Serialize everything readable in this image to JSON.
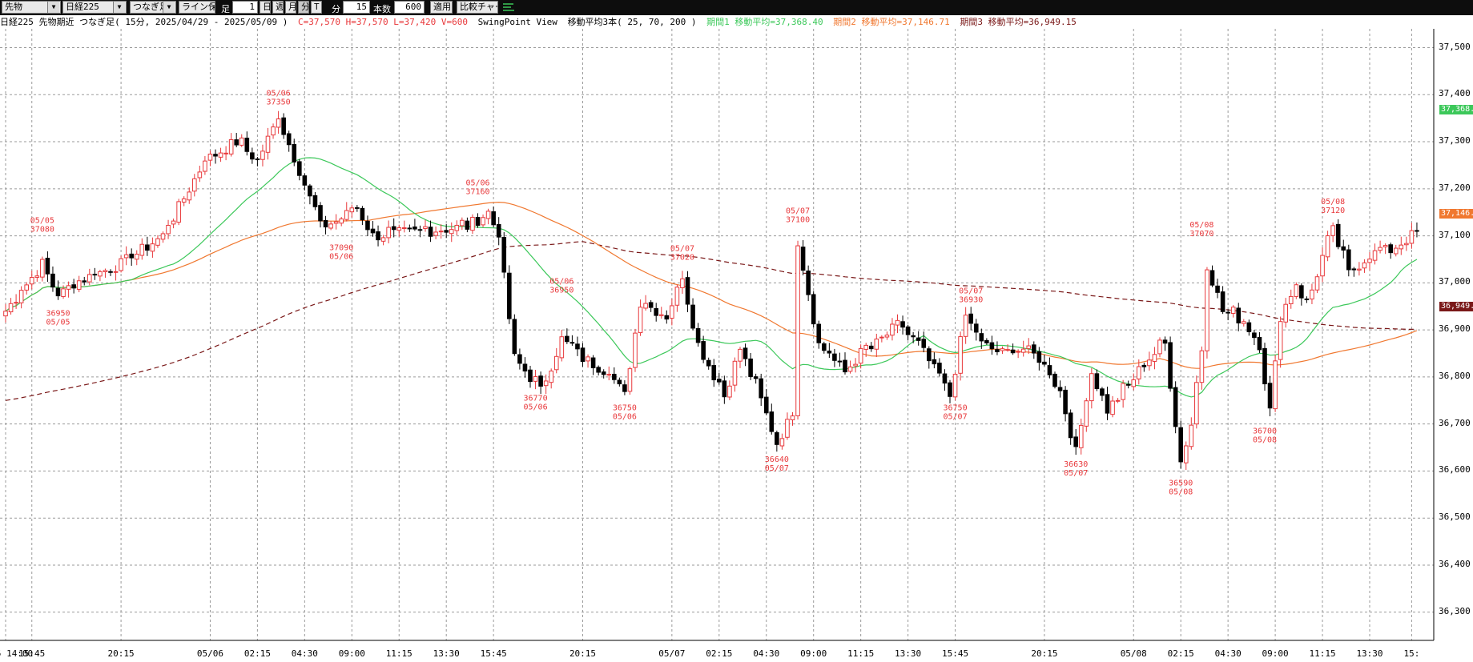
{
  "toolbar": {
    "contract_type": "先物",
    "index": "日経225",
    "continuity": "つなぎ足",
    "save_lines": "ライン保存",
    "foot_label": "足",
    "interval_value": "1",
    "daily": "日",
    "weekly": "週",
    "monthly": "月",
    "minute": "分",
    "tick": "T",
    "minutes_value": "15",
    "bars_label": "本数",
    "bars_value": "600",
    "apply": "適用",
    "compare": "比較チャート"
  },
  "info": {
    "title": "日経225 先物期近 つなぎ足( 15分, 2025/04/29 - 2025/05/09 )",
    "ohlc": "C=37,570 H=37,570 L=37,420 V=600",
    "swing": "SwingPoint View",
    "ma_title": "移動平均3本( 25, 70, 200 )",
    "ma1": "期間1 移動平均=37,368.40",
    "ma2": "期間2 移動平均=37,146.71",
    "ma3": "期間3 移動平均=36,949.15"
  },
  "colors": {
    "up": "#e8383b",
    "down": "#000000",
    "ma1": "#3cc85a",
    "ma2": "#f07830",
    "ma3": "#7a1818",
    "swing": "#e8383b",
    "grid": "#9a9a9a"
  },
  "markers": [
    {
      "text": "37,368.4",
      "value": 37368.4,
      "color": "#3cc85a"
    },
    {
      "text": "37,146.7",
      "value": 37146.7,
      "color": "#f07830"
    },
    {
      "text": "36,949.1",
      "value": 36949.15,
      "color": "#7a1818"
    }
  ],
  "chart_data": {
    "type": "candlestick",
    "title": "日経225 先物期近 つなぎ足( 15分, 2025/04/29 - 2025/05/09 )",
    "xlabel": "",
    "ylabel": "",
    "ylim": [
      36240,
      37540
    ],
    "yticks": [
      37500,
      37400,
      37300,
      37200,
      37100,
      37000,
      36900,
      36800,
      36700,
      36600,
      36500,
      36400,
      36300
    ],
    "ytick_labels": [
      "37,500",
      "37,400",
      "37,300",
      "37,200",
      "37,100",
      "37,000",
      "36,900",
      "36,800",
      "36,700",
      "36,600",
      "36,500",
      "36,400",
      "36,300"
    ],
    "xticks": [
      {
        "bar": 0,
        "label": "5 14:00"
      },
      {
        "bar": 5,
        "label": "15:45"
      },
      {
        "bar": 22,
        "label": "20:15"
      },
      {
        "bar": 39,
        "label": "05/06"
      },
      {
        "bar": 48,
        "label": "02:15"
      },
      {
        "bar": 57,
        "label": "04:30"
      },
      {
        "bar": 66,
        "label": "09:00"
      },
      {
        "bar": 75,
        "label": "11:15"
      },
      {
        "bar": 84,
        "label": "13:30"
      },
      {
        "bar": 93,
        "label": "15:45"
      },
      {
        "bar": 110,
        "label": "20:15"
      },
      {
        "bar": 127,
        "label": "05/07"
      },
      {
        "bar": 136,
        "label": "02:15"
      },
      {
        "bar": 145,
        "label": "04:30"
      },
      {
        "bar": 154,
        "label": "09:00"
      },
      {
        "bar": 163,
        "label": "11:15"
      },
      {
        "bar": 172,
        "label": "13:30"
      },
      {
        "bar": 181,
        "label": "15:45"
      },
      {
        "bar": 198,
        "label": "20:15"
      },
      {
        "bar": 215,
        "label": "05/08"
      },
      {
        "bar": 224,
        "label": "02:15"
      },
      {
        "bar": 233,
        "label": "04:30"
      },
      {
        "bar": 242,
        "label": "09:00"
      },
      {
        "bar": 251,
        "label": "11:15"
      },
      {
        "bar": 260,
        "label": "13:30"
      },
      {
        "bar": 268,
        "label": "15:"
      }
    ],
    "series": [
      {
        "name": "ローソク足",
        "type": "candle"
      },
      {
        "name": "移動平均 25",
        "type": "line",
        "color": "#3cc85a"
      },
      {
        "name": "移動平均 70",
        "type": "line",
        "color": "#f07830"
      },
      {
        "name": "移動平均 200",
        "type": "dashed-line",
        "color": "#7a1818"
      }
    ],
    "anchors": [
      [
        0,
        36940
      ],
      [
        7,
        37040
      ],
      [
        10,
        36970
      ],
      [
        13,
        37000
      ],
      [
        22,
        37040
      ],
      [
        30,
        37100
      ],
      [
        38,
        37260
      ],
      [
        44,
        37300
      ],
      [
        48,
        37260
      ],
      [
        52,
        37350
      ],
      [
        56,
        37240
      ],
      [
        60,
        37120
      ],
      [
        63,
        37130
      ],
      [
        67,
        37160
      ],
      [
        70,
        37100
      ],
      [
        80,
        37110
      ],
      [
        88,
        37120
      ],
      [
        92,
        37150
      ],
      [
        94,
        37100
      ],
      [
        95,
        37010
      ],
      [
        97,
        36840
      ],
      [
        100,
        36800
      ],
      [
        102,
        36770
      ],
      [
        106,
        36880
      ],
      [
        110,
        36840
      ],
      [
        115,
        36810
      ],
      [
        118,
        36760
      ],
      [
        121,
        36960
      ],
      [
        126,
        36930
      ],
      [
        129,
        37010
      ],
      [
        132,
        36870
      ],
      [
        137,
        36760
      ],
      [
        140,
        36860
      ],
      [
        144,
        36750
      ],
      [
        147,
        36660
      ],
      [
        150,
        36720
      ],
      [
        151,
        37090
      ],
      [
        155,
        36870
      ],
      [
        160,
        36810
      ],
      [
        163,
        36850
      ],
      [
        165,
        36860
      ],
      [
        170,
        36910
      ],
      [
        174,
        36870
      ],
      [
        180,
        36760
      ],
      [
        183,
        36930
      ],
      [
        186,
        36870
      ],
      [
        190,
        36850
      ],
      [
        194,
        36860
      ],
      [
        197,
        36840
      ],
      [
        201,
        36770
      ],
      [
        204,
        36640
      ],
      [
        207,
        36810
      ],
      [
        210,
        36730
      ],
      [
        214,
        36780
      ],
      [
        217,
        36830
      ],
      [
        221,
        36870
      ],
      [
        224,
        36620
      ],
      [
        226,
        36700
      ],
      [
        228,
        36860
      ],
      [
        229,
        37040
      ],
      [
        232,
        36940
      ],
      [
        236,
        36920
      ],
      [
        239,
        36870
      ],
      [
        241,
        36720
      ],
      [
        243,
        36930
      ],
      [
        246,
        37000
      ],
      [
        248,
        36950
      ],
      [
        252,
        37090
      ],
      [
        253,
        37110
      ],
      [
        256,
        37020
      ],
      [
        260,
        37060
      ],
      [
        264,
        37070
      ],
      [
        268,
        37100
      ]
    ],
    "swing_points": [
      {
        "bar": 7,
        "value": 37080,
        "date": "05/05",
        "pos": "high"
      },
      {
        "bar": 10,
        "value": 36950,
        "date": "05/05",
        "pos": "low"
      },
      {
        "bar": 52,
        "value": 37350,
        "date": "05/06",
        "pos": "high"
      },
      {
        "bar": 64,
        "value": 37090,
        "date": "05/06",
        "pos": "low"
      },
      {
        "bar": 90,
        "value": 37160,
        "date": "05/06",
        "pos": "high"
      },
      {
        "bar": 101,
        "value": 36770,
        "date": "05/06",
        "pos": "low"
      },
      {
        "bar": 106,
        "value": 36950,
        "date": "05/06",
        "pos": "high"
      },
      {
        "bar": 118,
        "value": 36750,
        "date": "05/06",
        "pos": "low"
      },
      {
        "bar": 129,
        "value": 37020,
        "date": "05/07",
        "pos": "high"
      },
      {
        "bar": 147,
        "value": 36640,
        "date": "05/07",
        "pos": "low"
      },
      {
        "bar": 151,
        "value": 37100,
        "date": "05/07",
        "pos": "high"
      },
      {
        "bar": 181,
        "value": 36750,
        "date": "05/07",
        "pos": "low"
      },
      {
        "bar": 184,
        "value": 36930,
        "date": "05/07",
        "pos": "high"
      },
      {
        "bar": 204,
        "value": 36630,
        "date": "05/07",
        "pos": "low"
      },
      {
        "bar": 228,
        "value": 37070,
        "date": "05/08",
        "pos": "high"
      },
      {
        "bar": 224,
        "value": 36590,
        "date": "05/08",
        "pos": "low"
      },
      {
        "bar": 240,
        "value": 36700,
        "date": "05/08",
        "pos": "low"
      },
      {
        "bar": 253,
        "value": 37120,
        "date": "05/08",
        "pos": "high"
      }
    ]
  }
}
